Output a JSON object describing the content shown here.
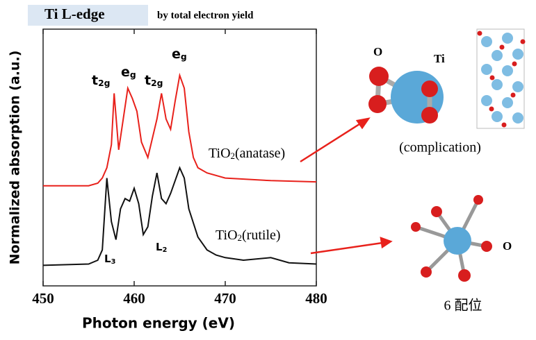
{
  "chart_data": {
    "type": "line",
    "title": "Ti L-edge",
    "subtitle": "by total electron yield",
    "x_label": "Photon energy (eV)",
    "y_label": "Normalized absorption (a.u.)",
    "xlim": [
      450,
      480
    ],
    "xticks": [
      450,
      460,
      470,
      480
    ],
    "ylim": [
      0,
      10
    ],
    "series": [
      {
        "name": [
          "TiO",
          "2",
          "(anatase)"
        ],
        "color": "#e8211b",
        "x": [
          450,
          455,
          456,
          456.5,
          457,
          457.5,
          457.8,
          458.3,
          458.8,
          459.3,
          459.8,
          460.3,
          460.8,
          461.5,
          462.5,
          463,
          463.5,
          464,
          464.5,
          465,
          465.5,
          466,
          466.5,
          467,
          468,
          470,
          475,
          480
        ],
        "values": [
          3.9,
          3.9,
          4.0,
          4.2,
          4.6,
          5.5,
          7.5,
          5.3,
          6.5,
          7.7,
          7.3,
          6.8,
          5.6,
          5.0,
          6.5,
          7.5,
          6.5,
          6.1,
          7.2,
          8.2,
          7.7,
          6.0,
          5.0,
          4.6,
          4.4,
          4.2,
          4.1,
          4.05
        ]
      },
      {
        "name": [
          "TiO",
          "2",
          "(rutile)"
        ],
        "color": "#111111",
        "x": [
          450,
          455,
          456,
          456.5,
          457,
          457.5,
          458,
          458.5,
          459,
          459.5,
          460,
          460.5,
          461,
          461.5,
          462,
          462.5,
          463,
          463.5,
          464,
          465,
          465.5,
          466,
          467,
          468,
          469,
          470,
          472,
          475,
          477,
          480
        ],
        "values": [
          0.8,
          0.85,
          1.0,
          1.4,
          4.2,
          2.5,
          1.8,
          3.0,
          3.4,
          3.3,
          3.8,
          3.2,
          2.0,
          2.3,
          3.5,
          4.4,
          3.4,
          3.2,
          3.6,
          4.6,
          4.2,
          3.0,
          1.9,
          1.4,
          1.2,
          1.1,
          1.0,
          1.1,
          0.9,
          0.85
        ]
      }
    ],
    "annotations": [
      [
        "t",
        "2g"
      ],
      [
        "e",
        "g"
      ],
      [
        "t",
        "2g"
      ],
      [
        "e",
        "g"
      ],
      [
        "L",
        "3"
      ],
      [
        "L",
        "2"
      ]
    ],
    "structure_labels": {
      "o_top": "O",
      "ti": "Ti",
      "caption_anatase": "(complication)",
      "o_bottom": "O",
      "caption_rutile": "6 配位"
    }
  }
}
